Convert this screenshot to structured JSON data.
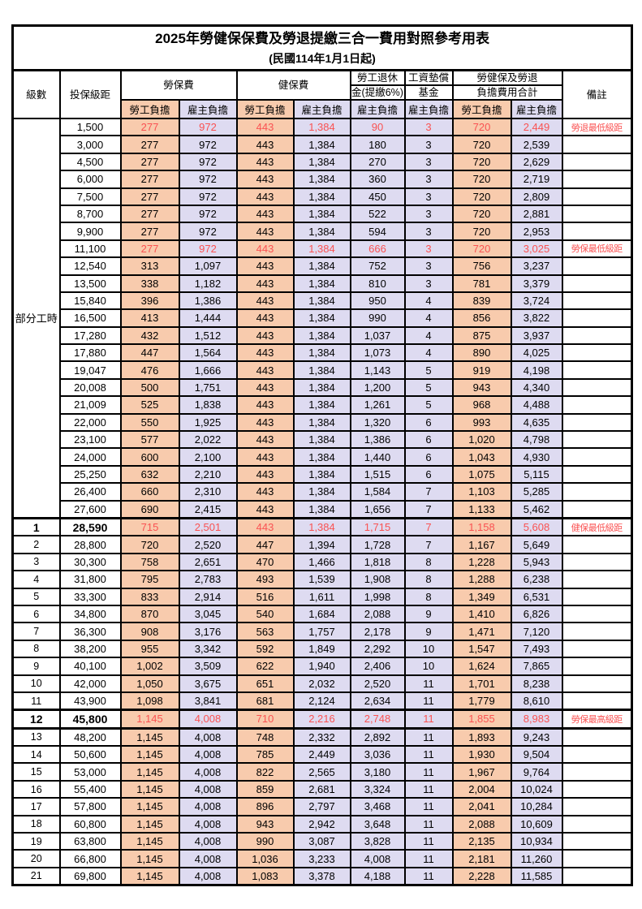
{
  "title": {
    "line1": "2025年勞健保保費及勞退提繳三合一費用對照參考用表",
    "line2": "(民國114年1月1日起)"
  },
  "header": {
    "level": "級數",
    "bracket": "投保級距",
    "labor_insurance": "勞保費",
    "health_insurance": "健保費",
    "pension_line1": "勞工退休",
    "pension_line2": "金(提繳6%)",
    "wage_fund_line1": "工資墊償",
    "wage_fund_line2": "基金",
    "total_line1": "勞健保及勞退",
    "total_line2": "負擔費用合計",
    "remark": "備註",
    "employee": "勞工負擔",
    "employer": "雇主負擔"
  },
  "part_time_label": "部分工時",
  "colors": {
    "employee_fill": "#F8CBAD",
    "employer_fill": "#DEDBF1",
    "highlight_text": "#FA5252",
    "border": "#000000"
  },
  "rows": [
    {
      "pt": true,
      "level": "",
      "bracket": "1,500",
      "v": [
        "277",
        "972",
        "443",
        "1,384",
        "90",
        "3",
        "720",
        "2,449"
      ],
      "remark": "勞退最低級距",
      "red": true,
      "bold": false,
      "thickTop": false,
      "thickBottom": false
    },
    {
      "pt": true,
      "level": "",
      "bracket": "3,000",
      "v": [
        "277",
        "972",
        "443",
        "1,384",
        "180",
        "3",
        "720",
        "2,539"
      ],
      "remark": "",
      "red": false,
      "bold": false,
      "thickTop": false,
      "thickBottom": false
    },
    {
      "pt": true,
      "level": "",
      "bracket": "4,500",
      "v": [
        "277",
        "972",
        "443",
        "1,384",
        "270",
        "3",
        "720",
        "2,629"
      ],
      "remark": "",
      "red": false,
      "bold": false,
      "thickTop": false,
      "thickBottom": false
    },
    {
      "pt": true,
      "level": "",
      "bracket": "6,000",
      "v": [
        "277",
        "972",
        "443",
        "1,384",
        "360",
        "3",
        "720",
        "2,719"
      ],
      "remark": "",
      "red": false,
      "bold": false,
      "thickTop": false,
      "thickBottom": false
    },
    {
      "pt": true,
      "level": "",
      "bracket": "7,500",
      "v": [
        "277",
        "972",
        "443",
        "1,384",
        "450",
        "3",
        "720",
        "2,809"
      ],
      "remark": "",
      "red": false,
      "bold": false,
      "thickTop": false,
      "thickBottom": false
    },
    {
      "pt": true,
      "level": "",
      "bracket": "8,700",
      "v": [
        "277",
        "972",
        "443",
        "1,384",
        "522",
        "3",
        "720",
        "2,881"
      ],
      "remark": "",
      "red": false,
      "bold": false,
      "thickTop": false,
      "thickBottom": false
    },
    {
      "pt": true,
      "level": "",
      "bracket": "9,900",
      "v": [
        "277",
        "972",
        "443",
        "1,384",
        "594",
        "3",
        "720",
        "2,953"
      ],
      "remark": "",
      "red": false,
      "bold": false,
      "thickTop": false,
      "thickBottom": false
    },
    {
      "pt": true,
      "level": "",
      "bracket": "11,100",
      "v": [
        "277",
        "972",
        "443",
        "1,384",
        "666",
        "3",
        "720",
        "3,025"
      ],
      "remark": "勞保最低級距",
      "red": true,
      "bold": false,
      "thickTop": false,
      "thickBottom": false
    },
    {
      "pt": true,
      "level": "",
      "bracket": "12,540",
      "v": [
        "313",
        "1,097",
        "443",
        "1,384",
        "752",
        "3",
        "756",
        "3,237"
      ],
      "remark": "",
      "red": false,
      "bold": false,
      "thickTop": false,
      "thickBottom": false
    },
    {
      "pt": true,
      "level": "",
      "bracket": "13,500",
      "v": [
        "338",
        "1,182",
        "443",
        "1,384",
        "810",
        "3",
        "781",
        "3,379"
      ],
      "remark": "",
      "red": false,
      "bold": false,
      "thickTop": false,
      "thickBottom": false
    },
    {
      "pt": true,
      "level": "",
      "bracket": "15,840",
      "v": [
        "396",
        "1,386",
        "443",
        "1,384",
        "950",
        "4",
        "839",
        "3,724"
      ],
      "remark": "",
      "red": false,
      "bold": false,
      "thickTop": false,
      "thickBottom": false
    },
    {
      "pt": true,
      "level": "",
      "bracket": "16,500",
      "v": [
        "413",
        "1,444",
        "443",
        "1,384",
        "990",
        "4",
        "856",
        "3,822"
      ],
      "remark": "",
      "red": false,
      "bold": false,
      "thickTop": false,
      "thickBottom": false
    },
    {
      "pt": true,
      "level": "",
      "bracket": "17,280",
      "v": [
        "432",
        "1,512",
        "443",
        "1,384",
        "1,037",
        "4",
        "875",
        "3,937"
      ],
      "remark": "",
      "red": false,
      "bold": false,
      "thickTop": false,
      "thickBottom": false
    },
    {
      "pt": true,
      "level": "",
      "bracket": "17,880",
      "v": [
        "447",
        "1,564",
        "443",
        "1,384",
        "1,073",
        "4",
        "890",
        "4,025"
      ],
      "remark": "",
      "red": false,
      "bold": false,
      "thickTop": false,
      "thickBottom": false
    },
    {
      "pt": true,
      "level": "",
      "bracket": "19,047",
      "v": [
        "476",
        "1,666",
        "443",
        "1,384",
        "1,143",
        "5",
        "919",
        "4,198"
      ],
      "remark": "",
      "red": false,
      "bold": false,
      "thickTop": false,
      "thickBottom": false
    },
    {
      "pt": true,
      "level": "",
      "bracket": "20,008",
      "v": [
        "500",
        "1,751",
        "443",
        "1,384",
        "1,200",
        "5",
        "943",
        "4,340"
      ],
      "remark": "",
      "red": false,
      "bold": false,
      "thickTop": false,
      "thickBottom": false
    },
    {
      "pt": true,
      "level": "",
      "bracket": "21,009",
      "v": [
        "525",
        "1,838",
        "443",
        "1,384",
        "1,261",
        "5",
        "968",
        "4,488"
      ],
      "remark": "",
      "red": false,
      "bold": false,
      "thickTop": false,
      "thickBottom": false
    },
    {
      "pt": true,
      "level": "",
      "bracket": "22,000",
      "v": [
        "550",
        "1,925",
        "443",
        "1,384",
        "1,320",
        "6",
        "993",
        "4,635"
      ],
      "remark": "",
      "red": false,
      "bold": false,
      "thickTop": false,
      "thickBottom": false
    },
    {
      "pt": true,
      "level": "",
      "bracket": "23,100",
      "v": [
        "577",
        "2,022",
        "443",
        "1,384",
        "1,386",
        "6",
        "1,020",
        "4,798"
      ],
      "remark": "",
      "red": false,
      "bold": false,
      "thickTop": false,
      "thickBottom": false
    },
    {
      "pt": true,
      "level": "",
      "bracket": "24,000",
      "v": [
        "600",
        "2,100",
        "443",
        "1,384",
        "1,440",
        "6",
        "1,043",
        "4,930"
      ],
      "remark": "",
      "red": false,
      "bold": false,
      "thickTop": false,
      "thickBottom": false
    },
    {
      "pt": true,
      "level": "",
      "bracket": "25,250",
      "v": [
        "632",
        "2,210",
        "443",
        "1,384",
        "1,515",
        "6",
        "1,075",
        "5,115"
      ],
      "remark": "",
      "red": false,
      "bold": false,
      "thickTop": false,
      "thickBottom": false
    },
    {
      "pt": true,
      "level": "",
      "bracket": "26,400",
      "v": [
        "660",
        "2,310",
        "443",
        "1,384",
        "1,584",
        "7",
        "1,103",
        "5,285"
      ],
      "remark": "",
      "red": false,
      "bold": false,
      "thickTop": false,
      "thickBottom": false
    },
    {
      "pt": true,
      "level": "",
      "bracket": "27,600",
      "v": [
        "690",
        "2,415",
        "443",
        "1,384",
        "1,656",
        "7",
        "1,133",
        "5,462"
      ],
      "remark": "",
      "red": false,
      "bold": false,
      "thickTop": false,
      "thickBottom": false
    },
    {
      "pt": false,
      "level": "1",
      "bracket": "28,590",
      "v": [
        "715",
        "2,501",
        "443",
        "1,384",
        "1,715",
        "7",
        "1,158",
        "5,608"
      ],
      "remark": "健保最低級距",
      "red": true,
      "bold": true,
      "thickTop": true,
      "thickBottom": false
    },
    {
      "pt": false,
      "level": "2",
      "bracket": "28,800",
      "v": [
        "720",
        "2,520",
        "447",
        "1,394",
        "1,728",
        "7",
        "1,167",
        "5,649"
      ],
      "remark": "",
      "red": false,
      "bold": false,
      "thickTop": false,
      "thickBottom": false
    },
    {
      "pt": false,
      "level": "3",
      "bracket": "30,300",
      "v": [
        "758",
        "2,651",
        "470",
        "1,466",
        "1,818",
        "8",
        "1,228",
        "5,943"
      ],
      "remark": "",
      "red": false,
      "bold": false,
      "thickTop": false,
      "thickBottom": false
    },
    {
      "pt": false,
      "level": "4",
      "bracket": "31,800",
      "v": [
        "795",
        "2,783",
        "493",
        "1,539",
        "1,908",
        "8",
        "1,288",
        "6,238"
      ],
      "remark": "",
      "red": false,
      "bold": false,
      "thickTop": false,
      "thickBottom": false
    },
    {
      "pt": false,
      "level": "5",
      "bracket": "33,300",
      "v": [
        "833",
        "2,914",
        "516",
        "1,611",
        "1,998",
        "8",
        "1,349",
        "6,531"
      ],
      "remark": "",
      "red": false,
      "bold": false,
      "thickTop": false,
      "thickBottom": false
    },
    {
      "pt": false,
      "level": "6",
      "bracket": "34,800",
      "v": [
        "870",
        "3,045",
        "540",
        "1,684",
        "2,088",
        "9",
        "1,410",
        "6,826"
      ],
      "remark": "",
      "red": false,
      "bold": false,
      "thickTop": false,
      "thickBottom": false
    },
    {
      "pt": false,
      "level": "7",
      "bracket": "36,300",
      "v": [
        "908",
        "3,176",
        "563",
        "1,757",
        "2,178",
        "9",
        "1,471",
        "7,120"
      ],
      "remark": "",
      "red": false,
      "bold": false,
      "thickTop": false,
      "thickBottom": false
    },
    {
      "pt": false,
      "level": "8",
      "bracket": "38,200",
      "v": [
        "955",
        "3,342",
        "592",
        "1,849",
        "2,292",
        "10",
        "1,547",
        "7,493"
      ],
      "remark": "",
      "red": false,
      "bold": false,
      "thickTop": false,
      "thickBottom": false
    },
    {
      "pt": false,
      "level": "9",
      "bracket": "40,100",
      "v": [
        "1,002",
        "3,509",
        "622",
        "1,940",
        "2,406",
        "10",
        "1,624",
        "7,865"
      ],
      "remark": "",
      "red": false,
      "bold": false,
      "thickTop": false,
      "thickBottom": false
    },
    {
      "pt": false,
      "level": "10",
      "bracket": "42,000",
      "v": [
        "1,050",
        "3,675",
        "651",
        "2,032",
        "2,520",
        "11",
        "1,701",
        "8,238"
      ],
      "remark": "",
      "red": false,
      "bold": false,
      "thickTop": false,
      "thickBottom": false
    },
    {
      "pt": false,
      "level": "11",
      "bracket": "43,900",
      "v": [
        "1,098",
        "3,841",
        "681",
        "2,124",
        "2,634",
        "11",
        "1,779",
        "8,610"
      ],
      "remark": "",
      "red": false,
      "bold": false,
      "thickTop": false,
      "thickBottom": false
    },
    {
      "pt": false,
      "level": "12",
      "bracket": "45,800",
      "v": [
        "1,145",
        "4,008",
        "710",
        "2,216",
        "2,748",
        "11",
        "1,855",
        "8,983"
      ],
      "remark": "勞保最高級距",
      "red": true,
      "bold": true,
      "thickTop": true,
      "thickBottom": true
    },
    {
      "pt": false,
      "level": "13",
      "bracket": "48,200",
      "v": [
        "1,145",
        "4,008",
        "748",
        "2,332",
        "2,892",
        "11",
        "1,893",
        "9,243"
      ],
      "remark": "",
      "red": false,
      "bold": false,
      "thickTop": false,
      "thickBottom": false
    },
    {
      "pt": false,
      "level": "14",
      "bracket": "50,600",
      "v": [
        "1,145",
        "4,008",
        "785",
        "2,449",
        "3,036",
        "11",
        "1,930",
        "9,504"
      ],
      "remark": "",
      "red": false,
      "bold": false,
      "thickTop": false,
      "thickBottom": false
    },
    {
      "pt": false,
      "level": "15",
      "bracket": "53,000",
      "v": [
        "1,145",
        "4,008",
        "822",
        "2,565",
        "3,180",
        "11",
        "1,967",
        "9,764"
      ],
      "remark": "",
      "red": false,
      "bold": false,
      "thickTop": false,
      "thickBottom": false
    },
    {
      "pt": false,
      "level": "16",
      "bracket": "55,400",
      "v": [
        "1,145",
        "4,008",
        "859",
        "2,681",
        "3,324",
        "11",
        "2,004",
        "10,024"
      ],
      "remark": "",
      "red": false,
      "bold": false,
      "thickTop": false,
      "thickBottom": false
    },
    {
      "pt": false,
      "level": "17",
      "bracket": "57,800",
      "v": [
        "1,145",
        "4,008",
        "896",
        "2,797",
        "3,468",
        "11",
        "2,041",
        "10,284"
      ],
      "remark": "",
      "red": false,
      "bold": false,
      "thickTop": false,
      "thickBottom": false
    },
    {
      "pt": false,
      "level": "18",
      "bracket": "60,800",
      "v": [
        "1,145",
        "4,008",
        "943",
        "2,942",
        "3,648",
        "11",
        "2,088",
        "10,609"
      ],
      "remark": "",
      "red": false,
      "bold": false,
      "thickTop": false,
      "thickBottom": false
    },
    {
      "pt": false,
      "level": "19",
      "bracket": "63,800",
      "v": [
        "1,145",
        "4,008",
        "990",
        "3,087",
        "3,828",
        "11",
        "2,135",
        "10,934"
      ],
      "remark": "",
      "red": false,
      "bold": false,
      "thickTop": false,
      "thickBottom": false
    },
    {
      "pt": false,
      "level": "20",
      "bracket": "66,800",
      "v": [
        "1,145",
        "4,008",
        "1,036",
        "3,233",
        "4,008",
        "11",
        "2,181",
        "11,260"
      ],
      "remark": "",
      "red": false,
      "bold": false,
      "thickTop": false,
      "thickBottom": false
    },
    {
      "pt": false,
      "level": "21",
      "bracket": "69,800",
      "v": [
        "1,145",
        "4,008",
        "1,083",
        "3,378",
        "4,188",
        "11",
        "2,228",
        "11,585"
      ],
      "remark": "",
      "red": false,
      "bold": false,
      "thickTop": false,
      "thickBottom": false
    }
  ]
}
